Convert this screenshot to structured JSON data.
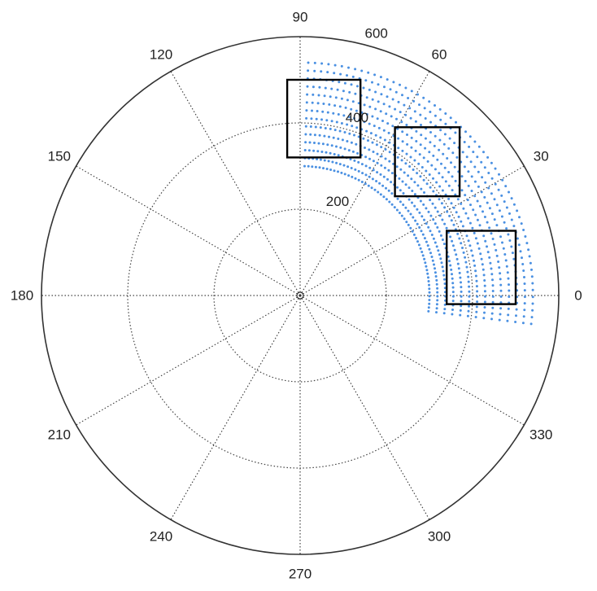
{
  "chart_data": {
    "type": "scatter",
    "title": "",
    "coordinate_system": "polar",
    "angle_ticks": [
      "0",
      "30",
      "60",
      "90",
      "120",
      "150",
      "180",
      "210",
      "240",
      "270",
      "300",
      "330"
    ],
    "angle_tick_values_deg": [
      0,
      30,
      60,
      90,
      120,
      150,
      180,
      210,
      240,
      270,
      300,
      330
    ],
    "radius_ticks": [
      "200",
      "400",
      "600"
    ],
    "radius_tick_values": [
      200,
      400,
      600
    ],
    "rlim": [
      0,
      600
    ],
    "grid": true,
    "series": [
      {
        "marker": "dot",
        "color": "#4a90e2",
        "sector": {
          "theta_deg": [
            -7,
            88
          ],
          "r": [
            300,
            540
          ],
          "theta_samples": 58,
          "r_samples": 14
        }
      }
    ],
    "annotations": [
      {
        "shape": "rectangle",
        "x": [
          -30,
          140
        ],
        "y": [
          320,
          500
        ]
      },
      {
        "shape": "rectangle",
        "x": [
          220,
          370
        ],
        "y": [
          230,
          390
        ]
      },
      {
        "shape": "rectangle",
        "x": [
          340,
          500
        ],
        "y": [
          -20,
          150
        ]
      }
    ],
    "colors": {
      "axis": "#333333",
      "grid": "#444444",
      "points": "#4a90e2",
      "boxes": "#000000"
    }
  }
}
